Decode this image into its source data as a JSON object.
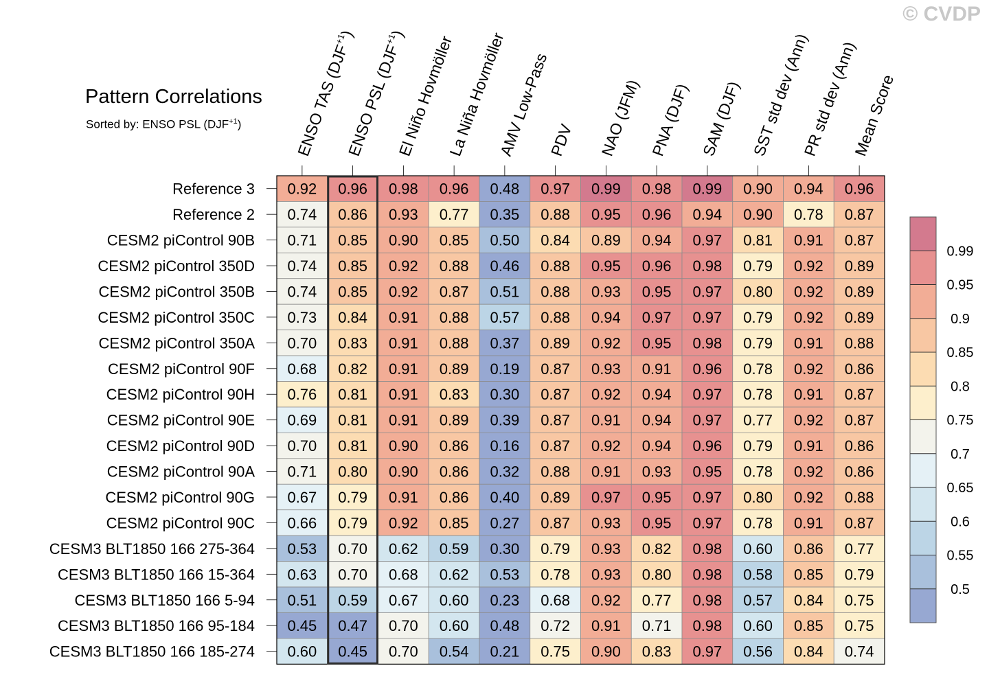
{
  "watermark": "© CVDP",
  "chart_data": {
    "type": "heatmap",
    "title": "Pattern Correlations",
    "subtitle": "Sorted by: ENSO PSL (DJF",
    "subtitle_sup": "+1",
    "subtitle_close": ")",
    "highlight_column": "ENSO PSL (DJF+1)",
    "columns": [
      {
        "label": "ENSO TAS (DJF",
        "sup": "+1",
        "close": ")"
      },
      {
        "label": "ENSO PSL (DJF",
        "sup": "+1",
        "close": ")"
      },
      {
        "label": "El Niño Hovmöller"
      },
      {
        "label": "La Niña Hovmöller"
      },
      {
        "label": "AMV Low-Pass"
      },
      {
        "label": "PDV"
      },
      {
        "label": "NAO (JFM)"
      },
      {
        "label": "PNA (DJF)"
      },
      {
        "label": "SAM (DJF)"
      },
      {
        "label": "SST std dev (Ann)"
      },
      {
        "label": "PR std dev (Ann)"
      },
      {
        "label": "Mean Score"
      }
    ],
    "rows": [
      {
        "name": "Reference 3",
        "values": [
          "0.92",
          "0.96",
          "0.98",
          "0.96",
          "0.48",
          "0.97",
          "0.99",
          "0.98",
          "0.99",
          "0.90",
          "0.94",
          "0.96"
        ]
      },
      {
        "name": "Reference 2",
        "values": [
          "0.74",
          "0.86",
          "0.93",
          "0.77",
          "0.35",
          "0.88",
          "0.95",
          "0.96",
          "0.94",
          "0.90",
          "0.78",
          "0.87"
        ]
      },
      {
        "name": "CESM2 piControl 90B",
        "values": [
          "0.71",
          "0.85",
          "0.90",
          "0.85",
          "0.50",
          "0.84",
          "0.89",
          "0.94",
          "0.97",
          "0.81",
          "0.91",
          "0.87"
        ]
      },
      {
        "name": "CESM2 piControl 350D",
        "values": [
          "0.74",
          "0.85",
          "0.92",
          "0.88",
          "0.46",
          "0.88",
          "0.95",
          "0.96",
          "0.98",
          "0.79",
          "0.92",
          "0.89"
        ]
      },
      {
        "name": "CESM2 piControl 350B",
        "values": [
          "0.74",
          "0.85",
          "0.92",
          "0.87",
          "0.51",
          "0.88",
          "0.93",
          "0.95",
          "0.97",
          "0.80",
          "0.92",
          "0.89"
        ]
      },
      {
        "name": "CESM2 piControl 350C",
        "values": [
          "0.73",
          "0.84",
          "0.91",
          "0.88",
          "0.57",
          "0.88",
          "0.94",
          "0.97",
          "0.97",
          "0.79",
          "0.92",
          "0.89"
        ]
      },
      {
        "name": "CESM2 piControl 350A",
        "values": [
          "0.70",
          "0.83",
          "0.91",
          "0.88",
          "0.37",
          "0.89",
          "0.92",
          "0.95",
          "0.98",
          "0.79",
          "0.91",
          "0.88"
        ]
      },
      {
        "name": "CESM2 piControl 90F",
        "values": [
          "0.68",
          "0.82",
          "0.91",
          "0.89",
          "0.19",
          "0.87",
          "0.93",
          "0.91",
          "0.96",
          "0.78",
          "0.92",
          "0.86"
        ]
      },
      {
        "name": "CESM2 piControl 90H",
        "values": [
          "0.76",
          "0.81",
          "0.91",
          "0.83",
          "0.30",
          "0.87",
          "0.92",
          "0.94",
          "0.97",
          "0.78",
          "0.91",
          "0.87"
        ]
      },
      {
        "name": "CESM2 piControl 90E",
        "values": [
          "0.69",
          "0.81",
          "0.91",
          "0.89",
          "0.39",
          "0.87",
          "0.91",
          "0.94",
          "0.97",
          "0.77",
          "0.92",
          "0.87"
        ]
      },
      {
        "name": "CESM2 piControl 90D",
        "values": [
          "0.70",
          "0.81",
          "0.90",
          "0.86",
          "0.16",
          "0.87",
          "0.92",
          "0.94",
          "0.96",
          "0.79",
          "0.91",
          "0.86"
        ]
      },
      {
        "name": "CESM2 piControl 90A",
        "values": [
          "0.71",
          "0.80",
          "0.90",
          "0.86",
          "0.32",
          "0.88",
          "0.91",
          "0.93",
          "0.95",
          "0.78",
          "0.92",
          "0.86"
        ]
      },
      {
        "name": "CESM2 piControl 90G",
        "values": [
          "0.67",
          "0.79",
          "0.91",
          "0.86",
          "0.40",
          "0.89",
          "0.97",
          "0.95",
          "0.97",
          "0.80",
          "0.92",
          "0.88"
        ]
      },
      {
        "name": "CESM2 piControl 90C",
        "values": [
          "0.66",
          "0.79",
          "0.92",
          "0.85",
          "0.27",
          "0.87",
          "0.93",
          "0.95",
          "0.97",
          "0.78",
          "0.91",
          "0.87"
        ]
      },
      {
        "name": "CESM3 BLT1850 166 275-364",
        "values": [
          "0.53",
          "0.70",
          "0.62",
          "0.59",
          "0.30",
          "0.79",
          "0.93",
          "0.82",
          "0.98",
          "0.60",
          "0.86",
          "0.77"
        ]
      },
      {
        "name": "CESM3 BLT1850 166 15-364",
        "values": [
          "0.63",
          "0.70",
          "0.68",
          "0.62",
          "0.53",
          "0.78",
          "0.93",
          "0.80",
          "0.98",
          "0.58",
          "0.85",
          "0.79"
        ]
      },
      {
        "name": "CESM3 BLT1850 166 5-94",
        "values": [
          "0.51",
          "0.59",
          "0.67",
          "0.60",
          "0.23",
          "0.68",
          "0.92",
          "0.77",
          "0.98",
          "0.57",
          "0.84",
          "0.75"
        ]
      },
      {
        "name": "CESM3 BLT1850 166 95-184",
        "values": [
          "0.45",
          "0.47",
          "0.70",
          "0.60",
          "0.48",
          "0.72",
          "0.91",
          "0.71",
          "0.98",
          "0.60",
          "0.85",
          "0.75"
        ]
      },
      {
        "name": "CESM3 BLT1850 166 185-274",
        "values": [
          "0.60",
          "0.45",
          "0.70",
          "0.54",
          "0.21",
          "0.75",
          "0.90",
          "0.83",
          "0.97",
          "0.56",
          "0.84",
          "0.74"
        ]
      }
    ],
    "colorbar": {
      "levels": [
        "0.5",
        "0.55",
        "0.6",
        "0.65",
        "0.7",
        "0.75",
        "0.8",
        "0.85",
        "0.9",
        "0.95",
        "0.99"
      ],
      "colors": [
        "#97a8d2",
        "#a9c0dc",
        "#bcd5e6",
        "#d3e6ef",
        "#e5f1f6",
        "#f3f3ec",
        "#fdefcc",
        "#fcdcb2",
        "#f8c7a3",
        "#f2ad96",
        "#e79190",
        "#d37a8e"
      ]
    }
  }
}
